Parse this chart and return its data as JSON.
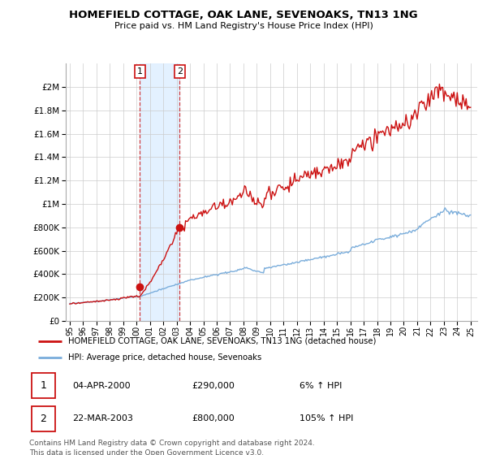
{
  "title": "HOMEFIELD COTTAGE, OAK LANE, SEVENOAKS, TN13 1NG",
  "subtitle": "Price paid vs. HM Land Registry's House Price Index (HPI)",
  "hpi_color": "#7aaddb",
  "price_color": "#cc1111",
  "annotation_box_color": "#cc1111",
  "shaded_color": "#ddeeff",
  "legend_label_price": "HOMEFIELD COTTAGE, OAK LANE, SEVENOAKS, TN13 1NG (detached house)",
  "legend_label_hpi": "HPI: Average price, detached house, Sevenoaks",
  "transactions": [
    {
      "label": "1",
      "date": "04-APR-2000",
      "price": 290000,
      "pct": "6%",
      "direction": "↑",
      "x_year": 2000.25
    },
    {
      "label": "2",
      "date": "22-MAR-2003",
      "price": 800000,
      "pct": "105%",
      "direction": "↑",
      "x_year": 2003.22
    }
  ],
  "footer": "Contains HM Land Registry data © Crown copyright and database right 2024.\nThis data is licensed under the Open Government Licence v3.0.",
  "ylim": [
    0,
    2200000
  ],
  "yticks": [
    0,
    200000,
    400000,
    600000,
    800000,
    1000000,
    1200000,
    1400000,
    1600000,
    1800000,
    2000000
  ],
  "xlim_start": 1994.7,
  "xlim_end": 2025.5
}
